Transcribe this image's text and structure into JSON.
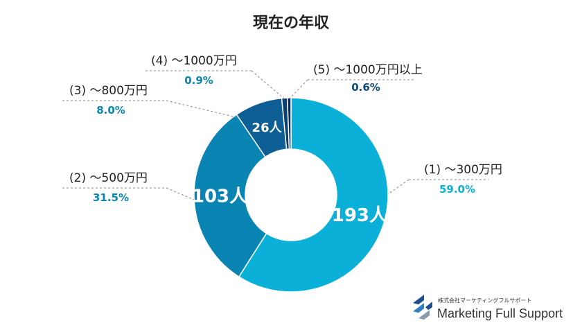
{
  "chart_data": {
    "type": "pie",
    "title": "現在の年収",
    "slices": [
      {
        "label": "(1) ～300万円",
        "percent_label": "59.0%",
        "count_label": "193人",
        "value": 193,
        "percent": 59.0
      },
      {
        "label": "(2) ～500万円",
        "percent_label": "31.5%",
        "count_label": "103人",
        "value": 103,
        "percent": 31.5
      },
      {
        "label": "(3) ～800万円",
        "percent_label": "8.0%",
        "count_label": "26人",
        "value": 26,
        "percent": 8.0
      },
      {
        "label": "(4) ～1000万円",
        "percent_label": "0.9%",
        "count_label": "",
        "value": 3,
        "percent": 0.9
      },
      {
        "label": "(5) ～1000万円以上",
        "percent_label": "0.6%",
        "count_label": "",
        "value": 2,
        "percent": 0.6
      }
    ],
    "donut": true
  },
  "colors": {
    "slice_colors": [
      "#0ab0d8",
      "#0a85b3",
      "#0d5f96",
      "#0a3f6e",
      "#0b2d55"
    ],
    "percent_colors": [
      "#0ab0d8",
      "#0a85b3",
      "#0a85b3",
      "#0a85b3",
      "#0d4a7a"
    ],
    "label_color": "#222222",
    "leader_color": "#888888"
  },
  "brand": {
    "sub": "株式会社マーケティングフルサポート",
    "main": "Marketing Full Support",
    "icon": "mfs-logo-icon"
  }
}
